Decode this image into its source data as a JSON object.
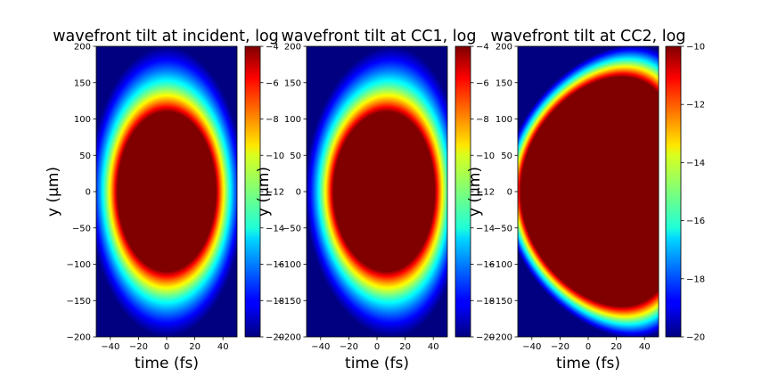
{
  "chart_data": [
    {
      "type": "heatmap",
      "title": "wavefront tilt at incident, log",
      "xlabel": "time (fs)",
      "ylabel": "y (μm)",
      "xlim": [
        -50,
        50
      ],
      "ylim": [
        -200,
        200
      ],
      "xticks": [
        "−40",
        "−20",
        "0",
        "20",
        "40"
      ],
      "xtick_values": [
        -40,
        -20,
        0,
        20,
        40
      ],
      "yticks": [
        "200",
        "150",
        "100",
        "50",
        "0",
        "−50",
        "−100",
        "−150",
        "−200"
      ],
      "ytick_values": [
        200,
        150,
        100,
        50,
        0,
        -50,
        -100,
        -150,
        -200
      ],
      "colorbar": {
        "range": [
          -20,
          -4
        ],
        "ticks": [
          "−4",
          "−6",
          "−8",
          "−10",
          "−12",
          "−14",
          "−16",
          "−18",
          "−20"
        ],
        "tick_values": [
          -4,
          -6,
          -8,
          -10,
          -12,
          -14,
          -16,
          -18,
          -20
        ]
      },
      "colormap": "jet",
      "field": {
        "shape": "elliptical",
        "center_t": 0,
        "center_y": 0,
        "saturated_half_width_t": 35,
        "saturated_half_height_y": 110,
        "outer_half_width_t": 55,
        "outer_half_height_y": 200,
        "edge_tilt": 0
      }
    },
    {
      "type": "heatmap",
      "title": "wavefront tilt at CC1, log",
      "xlabel": "time (fs)",
      "ylabel": "y (μm)",
      "xlim": [
        -50,
        50
      ],
      "ylim": [
        -200,
        200
      ],
      "xticks": [
        "−40",
        "−20",
        "0",
        "20",
        "40"
      ],
      "xtick_values": [
        -40,
        -20,
        0,
        20,
        40
      ],
      "yticks": [
        "200",
        "150",
        "100",
        "50",
        "0",
        "−50",
        "−100",
        "−150",
        "−200"
      ],
      "ytick_values": [
        200,
        150,
        100,
        50,
        0,
        -50,
        -100,
        -150,
        -200
      ],
      "colorbar": {
        "range": [
          -20,
          -4
        ],
        "ticks": [
          "−4",
          "−6",
          "−8",
          "−10",
          "−12",
          "−14",
          "−16",
          "−18",
          "−20"
        ],
        "tick_values": [
          -4,
          -6,
          -8,
          -10,
          -12,
          -14,
          -16,
          -18,
          -20
        ]
      },
      "colormap": "jet",
      "field": {
        "shape": "elliptical",
        "center_t": 5,
        "center_y": 0,
        "saturated_half_width_t": 36,
        "saturated_half_height_y": 110,
        "outer_half_width_t": 56,
        "outer_half_height_y": 200,
        "edge_tilt": 6
      }
    },
    {
      "type": "heatmap",
      "title": "wavefront tilt at CC2, log",
      "xlabel": "time (fs)",
      "ylabel": "y (μm)",
      "xlim": [
        -50,
        50
      ],
      "ylim": [
        -200,
        200
      ],
      "xticks": [
        "−40",
        "−20",
        "0",
        "20",
        "40"
      ],
      "xtick_values": [
        -40,
        -20,
        0,
        20,
        40
      ],
      "yticks": [
        "200",
        "150",
        "100",
        "50",
        "0",
        "−50",
        "−100",
        "−150",
        "−200"
      ],
      "ytick_values": [
        200,
        150,
        100,
        50,
        0,
        -50,
        -100,
        -150,
        -200
      ],
      "colorbar": {
        "range": [
          -20,
          -10
        ],
        "ticks": [
          "−10",
          "−12",
          "−14",
          "−16",
          "−18",
          "−20"
        ],
        "tick_values": [
          -10,
          -12,
          -14,
          -16,
          -18,
          -20
        ]
      },
      "colormap": "jet",
      "field": {
        "shape": "elliptical",
        "center_t": 10,
        "center_y": 0,
        "saturated_half_width_t": 58,
        "saturated_half_height_y": 158,
        "outer_half_width_t": 70,
        "outer_half_height_y": 202,
        "edge_tilt": 22
      }
    }
  ]
}
